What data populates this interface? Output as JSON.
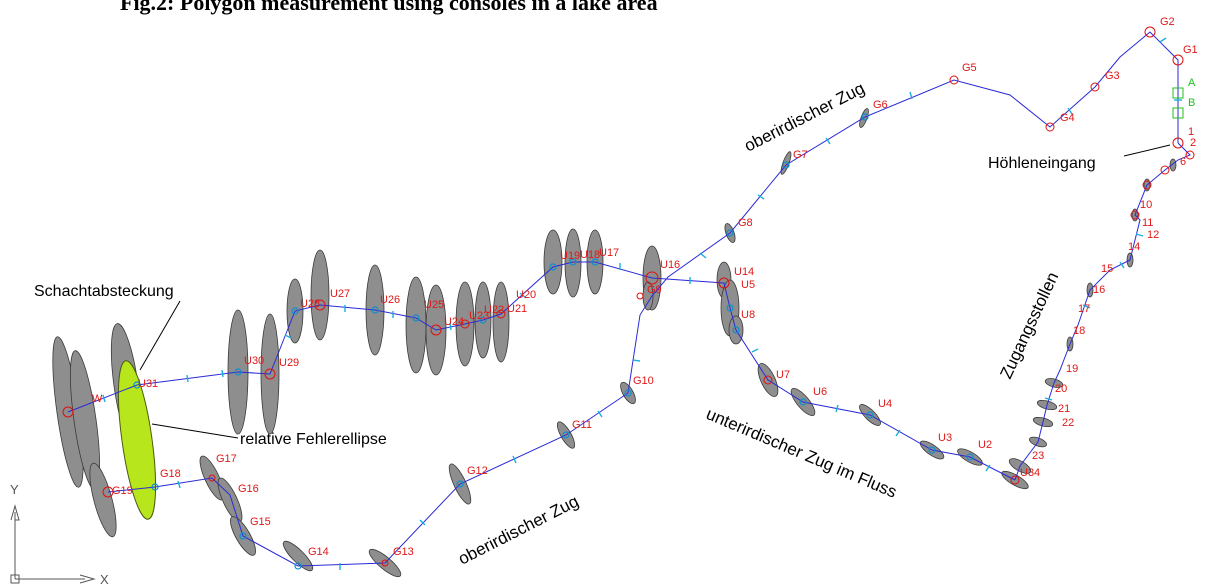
{
  "title": "Fig.2: Polygon measurement using consoles in a lake area",
  "annotations": {
    "oberirdisch_top": "oberirdischer Zug",
    "oberirdisch_bottom": "oberirdischer Zug",
    "unterirdisch": "unterirdischer Zug im Fluss",
    "zugangsstollen": "Zugangsstollen",
    "hoehleneingang": "Höhleneingang",
    "schachtabsteckung": "Schachtabsteckung",
    "fehlerellipse": "relative Fehlerellipse"
  },
  "axes": {
    "y": "Y",
    "x": "X"
  },
  "markers": {
    "a": "A",
    "b": "B"
  },
  "colors": {
    "ellipse": "#8e8e8e",
    "highlight_ellipse": "#b7e61d",
    "route": "#2a2ad8",
    "labels": "#e01818"
  },
  "stations": {
    "G": [
      "G1",
      "G2",
      "G3",
      "G4",
      "G5",
      "G6",
      "G7",
      "G8",
      "G9",
      "G10",
      "G11",
      "G12",
      "G13",
      "G14",
      "G15",
      "G16",
      "G17",
      "G18",
      "G19"
    ],
    "U": [
      "U2",
      "U3",
      "U4",
      "U5",
      "U6",
      "U7",
      "U8",
      "U14",
      "U16",
      "U17",
      "U18",
      "U19",
      "U20",
      "U21",
      "U22",
      "U23",
      "U24",
      "U25",
      "U26",
      "U27",
      "U28",
      "U29",
      "U30",
      "U31",
      "U34",
      "W"
    ],
    "tunnel": [
      "1",
      "2",
      "6",
      "10",
      "11",
      "12",
      "14",
      "15",
      "16",
      "17",
      "18",
      "19",
      "20",
      "21",
      "22",
      "23"
    ]
  }
}
